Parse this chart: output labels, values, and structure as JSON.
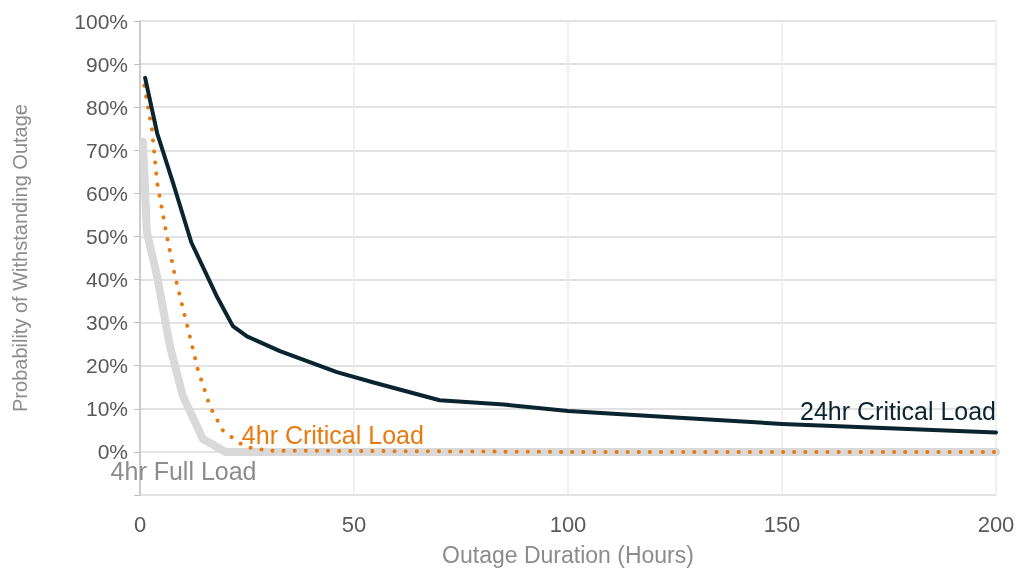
{
  "chart_data": {
    "type": "line",
    "xlabel": "Outage Duration (Hours)",
    "ylabel": "Probability of Withstanding Outage",
    "xlim": [
      0,
      200
    ],
    "xticks": [
      0,
      50,
      100,
      150,
      200
    ],
    "ylim": [
      -10,
      100
    ],
    "yticks": [
      {
        "value": -10,
        "label": null
      },
      {
        "value": 0,
        "label": "0%"
      },
      {
        "value": 10,
        "label": "10%"
      },
      {
        "value": 20,
        "label": "20%"
      },
      {
        "value": 30,
        "label": "30%"
      },
      {
        "value": 40,
        "label": "40%"
      },
      {
        "value": 50,
        "label": "50%"
      },
      {
        "value": 60,
        "label": "60%"
      },
      {
        "value": 70,
        "label": "70%"
      },
      {
        "value": 80,
        "label": "80%"
      },
      {
        "value": 90,
        "label": "90%"
      },
      {
        "value": 100,
        "label": "100%"
      }
    ],
    "grid": true,
    "legend": false,
    "marker": "none",
    "series": [
      {
        "name": "24hr Critical Load",
        "color": "#0a2430",
        "line_style": "solid",
        "x": [
          1.2,
          4,
          7.7,
          12,
          18,
          21.7,
          25,
          32.7,
          46,
          55,
          70,
          85,
          100,
          125,
          150,
          175,
          200
        ],
        "values": [
          86.8,
          74,
          62.5,
          48.6,
          36,
          29.2,
          26.8,
          23.4,
          18.5,
          16,
          12,
          11,
          9.5,
          8,
          6.5,
          5.5,
          4.5
        ]
      },
      {
        "name": "4hr Critical Load",
        "color": "#e87a0f",
        "line_style": "dotted",
        "x": [
          1,
          2.8,
          4,
          6.3,
          8.2,
          10.5,
          13.5,
          16.4,
          19.4,
          24.5,
          30,
          100,
          200
        ],
        "values": [
          85,
          74.8,
          62.5,
          50,
          40.7,
          31.5,
          19.2,
          10.4,
          4.9,
          1.2,
          0.3,
          0,
          0
        ]
      },
      {
        "name": "4hr Full Load",
        "color": "#d9d9d9",
        "line_style": "solid",
        "x": [
          0.7,
          1.6,
          4,
          7,
          10,
          14.7,
          20,
          100,
          200
        ],
        "values": [
          72,
          51,
          40.7,
          24.5,
          13,
          3,
          0,
          0,
          0
        ]
      }
    ]
  }
}
